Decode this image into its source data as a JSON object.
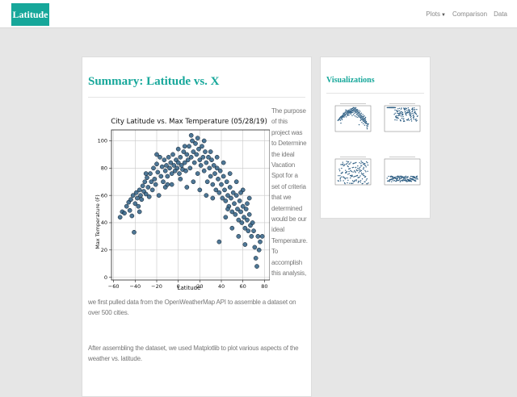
{
  "navbar": {
    "brand": "Latitude",
    "links": [
      {
        "label": "Plots",
        "has_dropdown": true
      },
      {
        "label": "Comparison"
      },
      {
        "label": "Data"
      }
    ]
  },
  "main": {
    "title": "Summary: Latitude vs. X",
    "side_text": "The purpose of this project was to Determine the ideal Vacation Spot for a set of criteria that we determined would be our ideal Temperature. To accomplish this analysis,",
    "paragraph_1": "we first pulled data from the OpenWeatherMap API to assemble a dataset on over 500 cities.",
    "paragraph_2": "After assembling the dataset, we used Matplotlib to plot various aspects of the weather vs. latitude."
  },
  "visualizations": {
    "title": "Visualizations",
    "thumbnails": [
      {
        "name": "latitude-vs-max-temperature"
      },
      {
        "name": "latitude-vs-humidity"
      },
      {
        "name": "latitude-vs-cloudiness"
      },
      {
        "name": "latitude-vs-wind-speed"
      }
    ]
  },
  "chart_data": {
    "type": "scatter",
    "title": "City Latitude vs. Max Temperature (05/28/19)",
    "xlabel": "Latitude",
    "ylabel": "Max Temperature (F)",
    "xlim": [
      -62,
      85
    ],
    "ylim": [
      -2,
      108
    ],
    "xticks": [
      -60,
      -40,
      -20,
      0,
      20,
      40,
      60,
      80
    ],
    "yticks": [
      0,
      20,
      40,
      60,
      80,
      100
    ],
    "grid": true,
    "colors": {
      "point_fill": "#2f5f84",
      "point_edge": "#0d1a26",
      "accent": "#16a79a"
    },
    "points": [
      [
        -54,
        44
      ],
      [
        -52,
        48
      ],
      [
        -50,
        47
      ],
      [
        -48,
        52
      ],
      [
        -46,
        55
      ],
      [
        -45,
        49
      ],
      [
        -44,
        57
      ],
      [
        -43,
        45
      ],
      [
        -42,
        60
      ],
      [
        -41,
        33
      ],
      [
        -40,
        54
      ],
      [
        -39,
        62
      ],
      [
        -38,
        58
      ],
      [
        -37,
        52
      ],
      [
        -36,
        64
      ],
      [
        -35,
        60
      ],
      [
        -34,
        57
      ],
      [
        -33,
        67
      ],
      [
        -32,
        63
      ],
      [
        -31,
        70
      ],
      [
        -30,
        61
      ],
      [
        -29,
        73
      ],
      [
        -28,
        66
      ],
      [
        -27,
        59
      ],
      [
        -26,
        76
      ],
      [
        -25,
        70
      ],
      [
        -24,
        64
      ],
      [
        -23,
        80
      ],
      [
        -22,
        72
      ],
      [
        -21,
        68
      ],
      [
        -20,
        83
      ],
      [
        -19,
        77
      ],
      [
        -18,
        60
      ],
      [
        -17,
        88
      ],
      [
        -16,
        74
      ],
      [
        -15,
        81
      ],
      [
        -14,
        70
      ],
      [
        -13,
        86
      ],
      [
        -12,
        78
      ],
      [
        -11,
        82
      ],
      [
        -10,
        74
      ],
      [
        -9,
        88
      ],
      [
        -8,
        80
      ],
      [
        -7,
        84
      ],
      [
        -6,
        76
      ],
      [
        -5,
        90
      ],
      [
        -4,
        82
      ],
      [
        -3,
        78
      ],
      [
        -2,
        86
      ],
      [
        -1,
        80
      ],
      [
        0,
        84
      ],
      [
        1,
        76
      ],
      [
        2,
        88
      ],
      [
        3,
        82
      ],
      [
        4,
        79
      ],
      [
        5,
        92
      ],
      [
        6,
        84
      ],
      [
        7,
        78
      ],
      [
        8,
        90
      ],
      [
        9,
        86
      ],
      [
        10,
        96
      ],
      [
        11,
        80
      ],
      [
        12,
        88
      ],
      [
        13,
        100
      ],
      [
        14,
        92
      ],
      [
        15,
        84
      ],
      [
        16,
        98
      ],
      [
        17,
        90
      ],
      [
        18,
        76
      ],
      [
        19,
        94
      ],
      [
        20,
        86
      ],
      [
        21,
        82
      ],
      [
        22,
        96
      ],
      [
        23,
        88
      ],
      [
        24,
        78
      ],
      [
        25,
        92
      ],
      [
        26,
        84
      ],
      [
        27,
        70
      ],
      [
        28,
        88
      ],
      [
        29,
        80
      ],
      [
        30,
        74
      ],
      [
        31,
        86
      ],
      [
        32,
        68
      ],
      [
        33,
        82
      ],
      [
        34,
        76
      ],
      [
        35,
        64
      ],
      [
        36,
        80
      ],
      [
        37,
        72
      ],
      [
        38,
        62
      ],
      [
        39,
        78
      ],
      [
        40,
        68
      ],
      [
        41,
        58
      ],
      [
        42,
        74
      ],
      [
        43,
        64
      ],
      [
        44,
        56
      ],
      [
        45,
        70
      ],
      [
        46,
        60
      ],
      [
        47,
        52
      ],
      [
        48,
        66
      ],
      [
        49,
        58
      ],
      [
        50,
        48
      ],
      [
        51,
        62
      ],
      [
        52,
        54
      ],
      [
        53,
        46
      ],
      [
        54,
        60
      ],
      [
        55,
        50
      ],
      [
        56,
        42
      ],
      [
        57,
        56
      ],
      [
        58,
        48
      ],
      [
        59,
        40
      ],
      [
        60,
        52
      ],
      [
        61,
        44
      ],
      [
        62,
        36
      ],
      [
        63,
        50
      ],
      [
        64,
        42
      ],
      [
        65,
        34
      ],
      [
        66,
        46
      ],
      [
        67,
        38
      ],
      [
        68,
        30
      ],
      [
        69,
        40
      ],
      [
        70,
        34
      ],
      [
        71,
        22
      ],
      [
        72,
        14
      ],
      [
        73,
        8
      ],
      [
        74,
        30
      ],
      [
        75,
        20
      ],
      [
        76,
        26
      ],
      [
        78,
        30
      ],
      [
        -6,
        68
      ],
      [
        2,
        72
      ],
      [
        8,
        66
      ],
      [
        14,
        70
      ],
      [
        20,
        64
      ],
      [
        26,
        60
      ],
      [
        32,
        58
      ],
      [
        -12,
        66
      ],
      [
        6,
        96
      ],
      [
        18,
        102
      ],
      [
        12,
        104
      ],
      [
        24,
        100
      ],
      [
        -30,
        76
      ],
      [
        -20,
        90
      ],
      [
        -10,
        68
      ],
      [
        0,
        94
      ],
      [
        36,
        88
      ],
      [
        42,
        84
      ],
      [
        48,
        76
      ],
      [
        54,
        70
      ],
      [
        60,
        64
      ],
      [
        66,
        58
      ],
      [
        30,
        92
      ],
      [
        -36,
        48
      ],
      [
        44,
        44
      ],
      [
        50,
        36
      ],
      [
        56,
        30
      ],
      [
        62,
        24
      ],
      [
        38,
        26
      ],
      [
        46,
        50
      ],
      [
        58,
        62
      ],
      [
        64,
        54
      ]
    ]
  }
}
